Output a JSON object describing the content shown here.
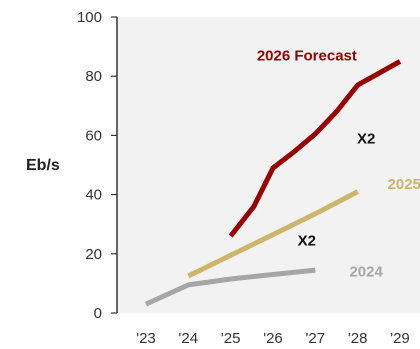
{
  "chart_data": {
    "type": "line",
    "title": "",
    "xlabel": "",
    "ylabel": "Eb/s",
    "ylim": [
      0,
      100
    ],
    "yticks": [
      0,
      20,
      40,
      60,
      80,
      100
    ],
    "xlim": [
      2023,
      2029
    ],
    "x_ticks": [
      {
        "value": 2023,
        "label": "'23"
      },
      {
        "value": 2024,
        "label": "'24"
      },
      {
        "value": 2025,
        "label": "'25"
      },
      {
        "value": 2026,
        "label": "'26"
      },
      {
        "value": 2027,
        "label": "'27"
      },
      {
        "value": 2028,
        "label": "'28"
      },
      {
        "value": 2029,
        "label": "'29"
      }
    ],
    "grid": false,
    "plot_background": "#f2f2f2",
    "series": [
      {
        "name": "2024",
        "color": "#a6a6a6",
        "x": [
          2023,
          2024,
          2025,
          2026,
          2027
        ],
        "y": [
          3,
          9.5,
          11.5,
          13,
          14.5
        ]
      },
      {
        "name": "2025",
        "color": "#cdb66a",
        "x": [
          2024,
          2025,
          2026,
          2027,
          2028
        ],
        "y": [
          12.5,
          19.5,
          26.5,
          33.5,
          41
        ]
      },
      {
        "name": "2026 Forecast",
        "color": "#990000",
        "x": [
          2025,
          2025.55,
          2026,
          2026.5,
          2027,
          2027.5,
          2028,
          2029
        ],
        "y": [
          26,
          36,
          49,
          54.5,
          60.5,
          68,
          77,
          85
        ]
      }
    ],
    "annotations": [
      {
        "text": "X2",
        "x": 2028.2,
        "y": 59,
        "color": "#111111"
      },
      {
        "text": "X2",
        "x": 2026.8,
        "y": 24.5,
        "color": "#111111"
      }
    ],
    "series_labels": [
      {
        "series": "2026 Forecast",
        "x": 2026.8,
        "y": 87
      },
      {
        "series": "2025",
        "x": 2029.1,
        "y": 43.5
      },
      {
        "series": "2024",
        "x": 2028.2,
        "y": 14
      }
    ]
  }
}
